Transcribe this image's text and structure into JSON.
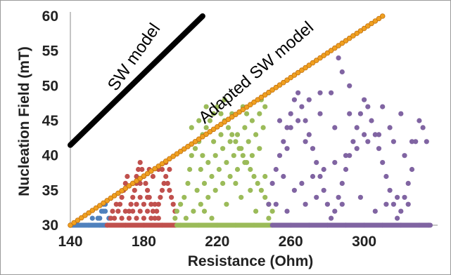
{
  "chart_data": {
    "type": "scatter",
    "xlabel": "Resistance (Ohm)",
    "ylabel": "Nucleation Field (mT)",
    "xlim": [
      140,
      340
    ],
    "ylim": [
      30,
      60
    ],
    "x_ticks": [
      "140",
      "180",
      "220",
      "260",
      "300"
    ],
    "y_ticks": [
      "30",
      "35",
      "40",
      "45",
      "50",
      "55",
      "60"
    ],
    "grid": false,
    "lines": [
      {
        "name": "SW model",
        "color": "#000000",
        "points": [
          [
            140,
            41.5
          ],
          [
            212,
            60
          ]
        ]
      },
      {
        "name": "Adapted SW model",
        "color": "#f0a020",
        "edge": "#c07010",
        "points": [
          [
            140,
            30
          ],
          [
            310,
            60
          ]
        ]
      }
    ],
    "clusters": [
      {
        "color": "#4f81bd",
        "points": [
          [
            140,
            30
          ],
          [
            150,
            30
          ],
          [
            160,
            30
          ],
          [
            152,
            31
          ],
          [
            155,
            31
          ],
          [
            156,
            31
          ],
          [
            157,
            32
          ],
          [
            158,
            32
          ],
          [
            159,
            32
          ],
          [
            159,
            33
          ],
          [
            158,
            33
          ],
          [
            160,
            30
          ],
          [
            161,
            31
          ],
          [
            156,
            30
          ]
        ]
      },
      {
        "color": "#c0504d",
        "points": [
          [
            160,
            30
          ],
          [
            170,
            30
          ],
          [
            180,
            30
          ],
          [
            190,
            30
          ],
          [
            162,
            31
          ],
          [
            163,
            32
          ],
          [
            165,
            33
          ],
          [
            166,
            32
          ],
          [
            167,
            33
          ],
          [
            168,
            34
          ],
          [
            169,
            35
          ],
          [
            170,
            36
          ],
          [
            171,
            37
          ],
          [
            172,
            32
          ],
          [
            173,
            33
          ],
          [
            174,
            34
          ],
          [
            175,
            35
          ],
          [
            176,
            36
          ],
          [
            177,
            38
          ],
          [
            178,
            39
          ],
          [
            179,
            38
          ],
          [
            180,
            37
          ],
          [
            181,
            36
          ],
          [
            182,
            35
          ],
          [
            183,
            34
          ],
          [
            184,
            33
          ],
          [
            185,
            32
          ],
          [
            186,
            31
          ],
          [
            187,
            32
          ],
          [
            188,
            33
          ],
          [
            189,
            34
          ],
          [
            190,
            35
          ],
          [
            191,
            36
          ],
          [
            192,
            37
          ],
          [
            193,
            36
          ],
          [
            194,
            35
          ],
          [
            195,
            34
          ],
          [
            196,
            33
          ],
          [
            197,
            32
          ],
          [
            164,
            31
          ],
          [
            168,
            31
          ],
          [
            172,
            31
          ],
          [
            176,
            31
          ],
          [
            180,
            31
          ],
          [
            184,
            31
          ],
          [
            188,
            31
          ],
          [
            170,
            32
          ],
          [
            174,
            32
          ],
          [
            178,
            32
          ],
          [
            182,
            32
          ],
          [
            186,
            33
          ],
          [
            176,
            33
          ],
          [
            180,
            33
          ],
          [
            178,
            34
          ],
          [
            182,
            34
          ],
          [
            174,
            36
          ],
          [
            178,
            36
          ],
          [
            176,
            37
          ],
          [
            183,
            38
          ],
          [
            185,
            37
          ],
          [
            188,
            38
          ],
          [
            192,
            39
          ],
          [
            194,
            38
          ],
          [
            190,
            38
          ]
        ]
      },
      {
        "color": "#9bbb59",
        "points": [
          [
            200,
            30
          ],
          [
            210,
            30
          ],
          [
            220,
            30
          ],
          [
            230,
            30
          ],
          [
            240,
            30
          ],
          [
            197,
            31
          ],
          [
            198,
            32
          ],
          [
            200,
            33
          ],
          [
            202,
            34
          ],
          [
            204,
            36
          ],
          [
            205,
            38
          ],
          [
            206,
            40
          ],
          [
            208,
            41
          ],
          [
            210,
            42
          ],
          [
            212,
            43
          ],
          [
            214,
            44
          ],
          [
            216,
            45
          ],
          [
            218,
            46
          ],
          [
            220,
            47
          ],
          [
            222,
            46
          ],
          [
            224,
            45
          ],
          [
            226,
            44
          ],
          [
            228,
            43
          ],
          [
            230,
            42
          ],
          [
            232,
            41
          ],
          [
            234,
            40
          ],
          [
            236,
            39
          ],
          [
            238,
            38
          ],
          [
            240,
            37
          ],
          [
            242,
            36
          ],
          [
            244,
            35
          ],
          [
            246,
            34
          ],
          [
            248,
            33
          ],
          [
            250,
            32
          ],
          [
            203,
            31
          ],
          [
            207,
            32
          ],
          [
            211,
            33
          ],
          [
            215,
            34
          ],
          [
            219,
            35
          ],
          [
            223,
            36
          ],
          [
            227,
            37
          ],
          [
            231,
            38
          ],
          [
            235,
            39
          ],
          [
            239,
            40
          ],
          [
            243,
            41
          ],
          [
            209,
            35
          ],
          [
            213,
            36
          ],
          [
            217,
            37
          ],
          [
            221,
            38
          ],
          [
            225,
            39
          ],
          [
            229,
            40
          ],
          [
            233,
            41
          ],
          [
            237,
            42
          ],
          [
            241,
            43
          ],
          [
            245,
            44
          ],
          [
            211,
            38
          ],
          [
            215,
            39
          ],
          [
            219,
            40
          ],
          [
            223,
            41
          ],
          [
            227,
            42
          ],
          [
            231,
            43
          ],
          [
            235,
            44
          ],
          [
            239,
            45
          ],
          [
            243,
            46
          ],
          [
            246,
            47
          ],
          [
            213,
            32
          ],
          [
            217,
            31
          ],
          [
            225,
            33
          ],
          [
            233,
            34
          ],
          [
            241,
            32
          ],
          [
            248,
            31
          ],
          [
            206,
            44
          ],
          [
            210,
            45
          ],
          [
            214,
            47
          ],
          [
            224,
            48
          ],
          [
            234,
            47
          ],
          [
            244,
            48
          ],
          [
            248,
            49
          ],
          [
            236,
            46
          ],
          [
            228,
            46
          ],
          [
            222,
            43
          ],
          [
            212,
            40
          ],
          [
            218,
            42
          ],
          [
            230,
            36
          ],
          [
            238,
            35
          ],
          [
            246,
            37
          ]
        ]
      },
      {
        "color": "#8064a2",
        "points": [
          [
            250,
            30
          ],
          [
            260,
            30
          ],
          [
            270,
            30
          ],
          [
            280,
            30
          ],
          [
            290,
            30
          ],
          [
            300,
            30
          ],
          [
            310,
            30
          ],
          [
            320,
            30
          ],
          [
            330,
            30
          ],
          [
            335,
            30
          ],
          [
            248,
            33
          ],
          [
            250,
            36
          ],
          [
            252,
            38
          ],
          [
            254,
            40
          ],
          [
            256,
            42
          ],
          [
            258,
            44
          ],
          [
            260,
            46
          ],
          [
            262,
            48
          ],
          [
            264,
            49
          ],
          [
            266,
            47
          ],
          [
            268,
            45
          ],
          [
            270,
            43
          ],
          [
            272,
            41
          ],
          [
            274,
            39
          ],
          [
            276,
            37
          ],
          [
            278,
            35
          ],
          [
            280,
            33
          ],
          [
            282,
            31
          ],
          [
            284,
            32
          ],
          [
            286,
            34
          ],
          [
            288,
            36
          ],
          [
            290,
            38
          ],
          [
            292,
            40
          ],
          [
            294,
            42
          ],
          [
            296,
            44
          ],
          [
            298,
            46
          ],
          [
            300,
            48
          ],
          [
            302,
            47
          ],
          [
            304,
            45
          ],
          [
            306,
            43
          ],
          [
            308,
            41
          ],
          [
            310,
            39
          ],
          [
            312,
            37
          ],
          [
            314,
            35
          ],
          [
            316,
            33
          ],
          [
            318,
            31
          ],
          [
            320,
            32
          ],
          [
            322,
            34
          ],
          [
            324,
            36
          ],
          [
            326,
            38
          ],
          [
            328,
            42
          ],
          [
            330,
            45
          ],
          [
            332,
            44
          ],
          [
            334,
            42
          ],
          [
            286,
            54
          ],
          [
            288,
            52
          ],
          [
            292,
            50
          ],
          [
            282,
            49
          ],
          [
            276,
            49
          ],
          [
            270,
            48
          ],
          [
            264,
            45
          ],
          [
            258,
            41
          ],
          [
            256,
            37
          ],
          [
            262,
            35
          ],
          [
            266,
            36
          ],
          [
            272,
            37
          ],
          [
            278,
            38
          ],
          [
            284,
            39
          ],
          [
            290,
            40
          ],
          [
            296,
            41
          ],
          [
            302,
            42
          ],
          [
            308,
            43
          ],
          [
            314,
            44
          ],
          [
            320,
            46
          ],
          [
            326,
            42
          ],
          [
            252,
            33
          ],
          [
            258,
            32
          ],
          [
            268,
            33
          ],
          [
            274,
            34
          ],
          [
            288,
            33
          ],
          [
            298,
            34
          ],
          [
            306,
            32
          ],
          [
            312,
            33
          ],
          [
            318,
            34
          ],
          [
            324,
            33
          ],
          [
            254,
            45
          ],
          [
            260,
            44
          ],
          [
            268,
            42
          ],
          [
            276,
            46
          ],
          [
            284,
            44
          ],
          [
            292,
            46
          ],
          [
            300,
            43
          ],
          [
            310,
            47
          ],
          [
            316,
            42
          ],
          [
            322,
            40
          ]
        ]
      }
    ]
  }
}
